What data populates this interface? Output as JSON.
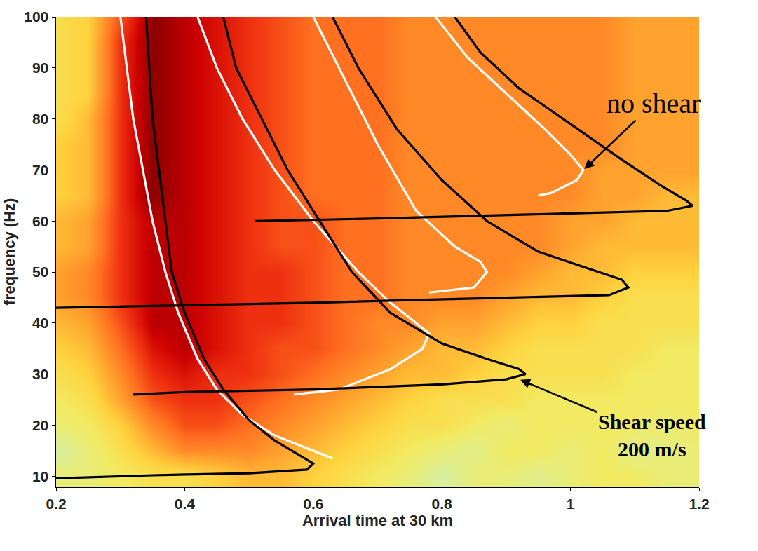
{
  "chart_data": {
    "type": "heatmap",
    "x_label": "Arrival time at 30 km",
    "y_label": "frequency (Hz)",
    "xlim": [
      0.2,
      1.2
    ],
    "ylim": [
      8,
      100
    ],
    "xticks": [
      0.2,
      0.4,
      0.6,
      0.8,
      1,
      1.2
    ],
    "yticks": [
      10,
      20,
      30,
      40,
      50,
      60,
      70,
      80,
      90,
      100
    ],
    "grid": false,
    "heatmap": {
      "zlim": [
        0,
        10
      ],
      "x": [
        0.2,
        0.25,
        0.3,
        0.35,
        0.4,
        0.45,
        0.5,
        0.55,
        0.6,
        0.65,
        0.7,
        0.75,
        0.8,
        0.85,
        0.9,
        0.95,
        1,
        1.05,
        1.1,
        1.15,
        1.2
      ],
      "y": [
        10,
        15,
        20,
        25,
        30,
        35,
        40,
        45,
        50,
        55,
        60,
        65,
        70,
        75,
        80,
        85,
        90,
        95,
        100
      ],
      "z": [
        [
          4,
          4,
          4.5,
          5,
          5,
          5.5,
          6,
          6,
          5.5,
          5,
          4.5,
          4,
          3,
          4,
          4,
          3.5,
          4,
          4.5,
          4.5,
          4,
          4
        ],
        [
          3,
          4,
          5,
          6,
          7,
          7,
          7,
          6.5,
          6,
          5.5,
          5,
          4.5,
          4,
          3.5,
          4.5,
          4.5,
          4,
          4.5,
          3.5,
          4,
          4
        ],
        [
          4,
          4.5,
          5.5,
          7,
          8,
          8,
          7.5,
          7,
          6.5,
          6,
          5.5,
          5,
          5,
          4.5,
          4,
          4.5,
          4.5,
          4.5,
          4.5,
          4,
          4.5
        ],
        [
          4.5,
          5,
          6.5,
          8,
          8.5,
          8.5,
          8,
          7.5,
          7,
          6.5,
          6,
          5.5,
          5,
          5,
          5,
          4.5,
          4.5,
          4.5,
          4.5,
          4.5,
          4.5
        ],
        [
          5,
          5.5,
          7,
          8.5,
          9,
          8.5,
          8.5,
          8,
          7.5,
          7,
          6.5,
          6,
          6,
          5.5,
          5,
          5,
          5,
          5,
          4.5,
          4.5,
          4.5
        ],
        [
          5.5,
          6,
          7.5,
          9,
          9.5,
          9,
          8.5,
          8,
          8,
          7.5,
          7,
          6.5,
          6,
          6,
          5.5,
          5,
          5,
          5,
          5,
          4.5,
          4.5
        ],
        [
          6,
          6.5,
          8,
          9.5,
          9.5,
          9,
          8.5,
          8.5,
          8,
          7.5,
          7,
          7,
          6.5,
          6.5,
          6,
          5.5,
          5.5,
          5,
          5,
          5,
          5
        ],
        [
          6.5,
          7,
          8.5,
          9.5,
          9.5,
          9,
          8.5,
          8.5,
          8,
          7.5,
          7.5,
          7,
          7,
          7,
          6.5,
          6,
          6,
          5.5,
          5,
          5,
          5
        ],
        [
          6.5,
          7,
          8.5,
          9.5,
          9.5,
          9,
          8.5,
          8.5,
          8,
          7.5,
          7.5,
          7,
          7,
          7,
          7,
          6.5,
          6,
          6,
          5.5,
          5.5,
          5.5
        ],
        [
          6,
          6.5,
          8.5,
          9.5,
          9.5,
          9,
          8.5,
          8,
          8,
          7.5,
          7.5,
          7,
          7,
          7,
          7,
          7,
          6.5,
          6,
          6,
          6,
          6
        ],
        [
          6,
          6.5,
          8.5,
          9.5,
          9.5,
          9,
          8.5,
          8,
          8,
          7.5,
          7.5,
          7,
          7,
          7,
          7,
          7,
          6.5,
          6.5,
          6,
          6,
          6
        ],
        [
          5.5,
          6,
          8.5,
          10,
          9.5,
          9,
          8.5,
          8,
          7.5,
          7.5,
          7.5,
          7,
          7,
          7,
          7,
          7,
          7,
          6.5,
          6.5,
          6,
          6
        ],
        [
          5.5,
          6,
          8.5,
          10,
          9.5,
          9,
          8.5,
          8,
          7.5,
          7.5,
          7.5,
          7,
          7,
          7,
          7,
          7,
          7,
          6.5,
          6.5,
          6.5,
          6.5
        ],
        [
          5.5,
          6,
          8.5,
          10,
          9.5,
          9,
          8.5,
          8,
          7.5,
          7.5,
          7.5,
          7,
          7,
          7,
          7,
          7,
          7,
          7,
          6.5,
          6.5,
          6.5
        ],
        [
          5,
          6,
          8.5,
          10,
          9.5,
          9,
          8.5,
          8,
          7.5,
          7.5,
          7.5,
          7,
          7,
          7,
          7,
          7,
          7,
          7,
          6.5,
          6.5,
          6.5
        ],
        [
          5,
          5.5,
          8.5,
          10,
          9.5,
          9,
          8.5,
          8,
          7.5,
          7.5,
          7.5,
          7,
          7,
          7,
          7,
          7,
          7,
          7,
          6.5,
          6.5,
          6.5
        ],
        [
          5,
          5.5,
          8.5,
          10,
          9.5,
          9,
          8.5,
          8,
          7.5,
          7.5,
          7.5,
          7,
          7,
          7,
          7,
          7,
          7,
          7,
          6.5,
          6.5,
          6.5
        ],
        [
          5,
          5.5,
          8.5,
          10,
          9.5,
          9,
          8.5,
          8,
          7.5,
          7.5,
          7.5,
          7,
          7,
          7,
          7,
          7,
          7,
          7,
          6.5,
          6.5,
          6.5
        ],
        [
          5,
          5.5,
          8,
          10,
          9.5,
          9,
          8.5,
          8,
          7.5,
          7.5,
          7.5,
          7,
          7,
          7,
          7,
          7,
          7,
          7,
          6.5,
          6.5,
          6.5
        ]
      ]
    },
    "series": [
      {
        "type": "line",
        "color": "white",
        "x": [
          0.3,
          0.31,
          0.32,
          0.335,
          0.35,
          0.37,
          0.39,
          0.42,
          0.45,
          0.49,
          0.54,
          0.58,
          0.62,
          0.63
        ],
        "y": [
          100,
          90,
          80,
          70,
          60,
          50,
          42,
          33,
          27,
          22,
          18,
          16,
          14,
          13.5
        ]
      },
      {
        "type": "line",
        "color": "black",
        "x": [
          0.34,
          0.345,
          0.35,
          0.36,
          0.37,
          0.38,
          0.4,
          0.43,
          0.46,
          0.5,
          0.54,
          0.58,
          0.6,
          0.59,
          0.5,
          0.35,
          0.2
        ],
        "y": [
          100,
          90,
          80,
          70,
          60,
          50,
          42,
          33,
          27,
          21,
          17,
          14,
          12.5,
          11.3,
          10.6,
          10.2,
          9.6
        ]
      },
      {
        "type": "line",
        "color": "white",
        "x": [
          0.42,
          0.45,
          0.49,
          0.54,
          0.6,
          0.67,
          0.72,
          0.76,
          0.78,
          0.77,
          0.72,
          0.64,
          0.57
        ],
        "y": [
          100,
          90,
          80,
          70,
          60,
          50,
          44,
          40,
          38,
          35,
          31,
          27,
          26
        ]
      },
      {
        "type": "line",
        "color": "black",
        "x": [
          0.46,
          0.48,
          0.52,
          0.56,
          0.61,
          0.66,
          0.72,
          0.8,
          0.87,
          0.92,
          0.93,
          0.9,
          0.8,
          0.6,
          0.4,
          0.32
        ],
        "y": [
          100,
          90,
          80,
          70,
          60,
          50,
          42,
          36,
          33,
          31,
          30,
          29,
          28,
          27,
          26.5,
          26
        ]
      },
      {
        "type": "line",
        "color": "white",
        "x": [
          0.6,
          0.64,
          0.7,
          0.76,
          0.82,
          0.86,
          0.87,
          0.85,
          0.78
        ],
        "y": [
          100,
          90,
          75,
          62,
          55,
          52,
          50,
          47,
          46
        ]
      },
      {
        "type": "line",
        "color": "black",
        "x": [
          0.63,
          0.67,
          0.73,
          0.8,
          0.87,
          0.95,
          1.02,
          1.08,
          1.09,
          1.06,
          0.9,
          0.6,
          0.2
        ],
        "y": [
          100,
          90,
          78,
          68,
          60,
          54,
          51,
          48.5,
          47,
          45.5,
          45,
          44,
          43
        ]
      },
      {
        "type": "line",
        "color": "white",
        "x": [
          0.79,
          0.84,
          0.9,
          0.96,
          1.0,
          1.02,
          1.01,
          0.97,
          0.95
        ],
        "y": [
          100,
          92,
          85,
          78,
          73,
          70,
          68,
          65.5,
          65
        ]
      },
      {
        "type": "line",
        "color": "black",
        "x": [
          0.82,
          0.86,
          0.92,
          1.0,
          1.08,
          1.14,
          1.18,
          1.19,
          1.15,
          1.0,
          0.7,
          0.51
        ],
        "y": [
          100,
          93,
          86,
          79,
          72,
          67,
          64,
          63,
          62,
          61.5,
          60.5,
          60
        ]
      }
    ],
    "annotations": [
      {
        "lines": [
          "no shear"
        ],
        "x": 1.02,
        "y": 70
      },
      {
        "lines": [
          "Shear speed",
          "200 m/s"
        ],
        "x": 0.92,
        "y": 29
      }
    ]
  }
}
